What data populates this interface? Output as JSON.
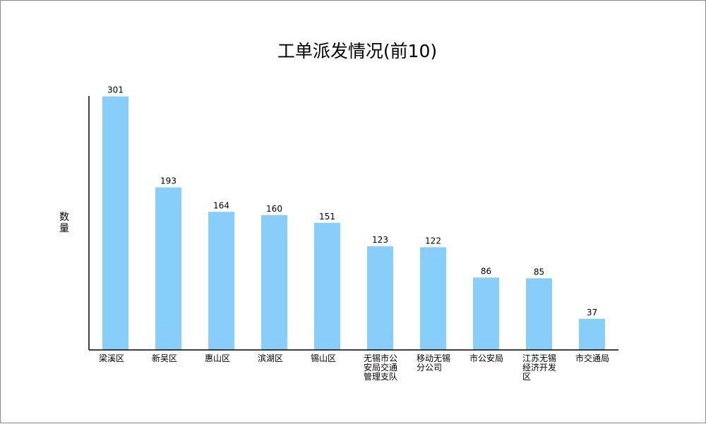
{
  "chart_data": {
    "type": "bar",
    "title": "工单派发情况(前10)",
    "ylabel": "数量",
    "categories": [
      "梁溪区",
      "新吴区",
      "惠山区",
      "滨湖区",
      "锡山区",
      "无锡市公安局交通管理支队",
      "移动无锡分公司",
      "市公安局",
      "江苏无锡经济开发区",
      "市交通局"
    ],
    "values": [
      301,
      193,
      164,
      160,
      151,
      123,
      122,
      86,
      85,
      37
    ],
    "ylim": [
      0,
      310
    ],
    "bar_color": "#87cefa",
    "grid": false,
    "legend": "none"
  }
}
